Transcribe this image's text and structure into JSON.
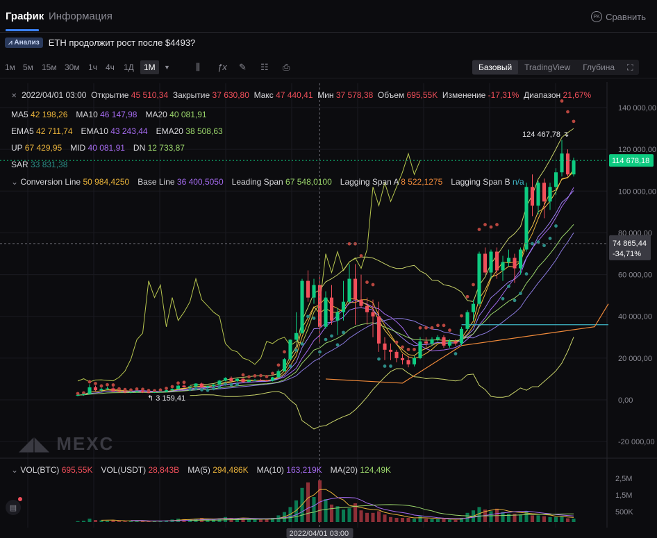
{
  "tabs": {
    "chart": "График",
    "info": "Информация",
    "compare": "Сравнить",
    "compare_icon": "PK"
  },
  "analysis": {
    "badge": "Анализ",
    "text": "ETH продолжит рост после $4493?"
  },
  "toolbar": {
    "timeframes": [
      "1м",
      "5м",
      "15м",
      "30м",
      "1ч",
      "4ч",
      "1Д",
      "1М"
    ],
    "active_timeframe": "1М",
    "views": [
      "Базовый",
      "TradingView",
      "Глубина"
    ],
    "active_view": "Базовый"
  },
  "ohlc": {
    "date": "2022/04/01 03:00",
    "open_label": "Открытие",
    "open": "45 510,34",
    "close_label": "Закрытие",
    "close": "37 630,80",
    "high_label": "Макс",
    "high": "47 440,41",
    "low_label": "Мин",
    "low": "37 578,38",
    "vol_label": "Объем",
    "vol": "695,55K",
    "change_label": "Изменение",
    "change": "-17,31%",
    "range_label": "Диапазон",
    "range": "21,67%"
  },
  "indicators": {
    "ma": [
      {
        "k": "MA5",
        "v": "42 198,26",
        "c": "#e8b23a"
      },
      {
        "k": "MA10",
        "v": "46 147,98",
        "c": "#a56bf0"
      },
      {
        "k": "MA20",
        "v": "40 081,91",
        "c": "#9bd66b"
      }
    ],
    "ema": [
      {
        "k": "EMA5",
        "v": "42 711,74",
        "c": "#e8b23a"
      },
      {
        "k": "EMA10",
        "v": "43 243,44",
        "c": "#a56bf0"
      },
      {
        "k": "EMA20",
        "v": "38 508,63",
        "c": "#9bd66b"
      }
    ],
    "boll": [
      {
        "k": "UP",
        "v": "67 429,95",
        "c": "#e8b23a"
      },
      {
        "k": "MID",
        "v": "40 081,91",
        "c": "#a56bf0"
      },
      {
        "k": "DN",
        "v": "12 733,87",
        "c": "#9bd66b"
      }
    ],
    "sar": [
      {
        "k": "SAR",
        "v": "33 831,38",
        "c": "#2c8c86"
      }
    ],
    "ichimoku": [
      {
        "k": "Conversion Line",
        "v": "50 984,4250",
        "c": "#e8b23a"
      },
      {
        "k": "Base Line",
        "v": "36 400,5050",
        "c": "#a56bf0"
      },
      {
        "k": "Leading Span",
        "v": "67 548,0100",
        "c": "#9bd66b"
      },
      {
        "k": "Lagging Span A",
        "v": "8 522,1275",
        "c": "#f08a3a"
      },
      {
        "k": "Lagging Span B",
        "v": "n/a",
        "c": "#3fb6c7"
      }
    ]
  },
  "watermark": "MEXC",
  "chart_data": {
    "type": "candlestick",
    "y_ticks": [
      "140 000,00",
      "120 000,00",
      "100 000,00",
      "80 000,00",
      "60 000,00",
      "40 000,00",
      "20 000,00",
      "0,00",
      "-20 000,00"
    ],
    "ylim": [
      -20000,
      150000
    ],
    "current_price": "114 678,18",
    "cursor_price": "74 865,44",
    "cursor_change": "-34,71%",
    "high_marker": "124 467,78",
    "low_marker": "3 159,41",
    "x_label": "2022/04/01 03:00",
    "candles": [
      [
        2000,
        2600,
        1700,
        2300
      ],
      [
        2300,
        2900,
        2000,
        2800
      ],
      [
        2800,
        7500,
        2600,
        6000
      ],
      [
        6000,
        6800,
        4200,
        4600
      ],
      [
        4600,
        5800,
        3900,
        5200
      ],
      [
        5200,
        6300,
        4800,
        5500
      ],
      [
        5500,
        6200,
        3800,
        4100
      ],
      [
        4100,
        4600,
        3400,
        3900
      ],
      [
        3900,
        4300,
        3200,
        3500
      ],
      [
        3500,
        4100,
        3160,
        3800
      ],
      [
        3800,
        4500,
        3500,
        4200
      ],
      [
        4200,
        4400,
        3300,
        3600
      ],
      [
        3600,
        3900,
        3200,
        3400
      ],
      [
        3400,
        3800,
        3300,
        3700
      ],
      [
        3700,
        4100,
        3500,
        3900
      ],
      [
        3900,
        4800,
        3700,
        4600
      ],
      [
        4600,
        5500,
        4300,
        5200
      ],
      [
        5200,
        7000,
        5000,
        6800
      ],
      [
        6800,
        7300,
        5800,
        6100
      ],
      [
        6100,
        6700,
        5900,
        6500
      ],
      [
        6500,
        8000,
        6300,
        7800
      ],
      [
        7800,
        8200,
        5700,
        6000
      ],
      [
        6000,
        6800,
        5400,
        6600
      ],
      [
        6600,
        7500,
        6300,
        7300
      ],
      [
        7300,
        9500,
        7100,
        9200
      ],
      [
        9200,
        10800,
        8900,
        10500
      ],
      [
        10500,
        11200,
        8600,
        9000
      ],
      [
        9000,
        10300,
        8600,
        10100
      ],
      [
        10100,
        10400,
        8200,
        8600
      ],
      [
        8600,
        9600,
        8500,
        9500
      ],
      [
        9500,
        10000,
        9100,
        9600
      ],
      [
        9600,
        10100,
        9000,
        9300
      ],
      [
        9300,
        9700,
        8700,
        9100
      ],
      [
        9100,
        11000,
        8800,
        10800
      ],
      [
        10800,
        14500,
        10500,
        13800
      ],
      [
        13800,
        20000,
        13600,
        19500
      ],
      [
        19500,
        29000,
        19000,
        28800
      ],
      [
        28800,
        42000,
        28000,
        32000
      ],
      [
        32000,
        58000,
        31500,
        57000
      ],
      [
        57000,
        62000,
        47000,
        49000
      ],
      [
        49000,
        58000,
        46000,
        55000
      ],
      [
        55000,
        60000,
        27000,
        35000
      ],
      [
        35000,
        52000,
        34000,
        49000
      ],
      [
        49000,
        55000,
        36000,
        38000
      ],
      [
        38000,
        44000,
        31000,
        42000
      ],
      [
        42000,
        57000,
        38000,
        47000
      ],
      [
        47000,
        65000,
        46000,
        58000
      ],
      [
        58000,
        65000,
        36000,
        48000
      ],
      [
        48000,
        60000,
        44000,
        45000
      ],
      [
        45000,
        49000,
        36000,
        42000
      ],
      [
        42000,
        48000,
        30000,
        40000
      ],
      [
        40000,
        47000,
        23000,
        27000
      ],
      [
        27000,
        30000,
        19000,
        24000
      ],
      [
        24000,
        27000,
        19000,
        23000
      ],
      [
        23000,
        24000,
        18000,
        20000
      ],
      [
        20000,
        22000,
        17000,
        19000
      ],
      [
        19000,
        21000,
        15600,
        17000
      ],
      [
        17000,
        21000,
        16000,
        20000
      ],
      [
        20000,
        30000,
        19500,
        28000
      ],
      [
        28000,
        30000,
        25000,
        27000
      ],
      [
        27000,
        30000,
        26000,
        29000
      ],
      [
        29000,
        31000,
        28000,
        30000
      ],
      [
        30000,
        31000,
        25000,
        26000
      ],
      [
        26000,
        29000,
        25000,
        28000
      ],
      [
        28000,
        29000,
        26000,
        27000
      ],
      [
        27000,
        35000,
        26000,
        34000
      ],
      [
        34000,
        43000,
        33000,
        42000
      ],
      [
        42000,
        48000,
        38000,
        46000
      ],
      [
        46000,
        71000,
        45000,
        70000
      ],
      [
        70000,
        73000,
        60000,
        61000
      ],
      [
        61000,
        72000,
        58000,
        71000
      ],
      [
        71000,
        73000,
        58000,
        62000
      ],
      [
        62000,
        69000,
        57000,
        66000
      ],
      [
        66000,
        72000,
        64000,
        68000
      ],
      [
        68000,
        70000,
        56000,
        63000
      ],
      [
        63000,
        73000,
        60000,
        72000
      ],
      [
        72000,
        104000,
        71000,
        102000
      ],
      [
        102000,
        108000,
        88000,
        93000
      ],
      [
        93000,
        105000,
        89000,
        104000
      ],
      [
        104000,
        106000,
        87000,
        95000
      ],
      [
        95000,
        104000,
        91000,
        102000
      ],
      [
        102000,
        111000,
        98000,
        109000
      ],
      [
        109000,
        124500,
        107000,
        118000
      ],
      [
        118000,
        120000,
        107000,
        108000
      ],
      [
        108000,
        116000,
        107000,
        114700
      ]
    ],
    "volume": [
      0.02,
      0.03,
      0.08,
      0.05,
      0.04,
      0.03,
      0.04,
      0.03,
      0.02,
      0.02,
      0.03,
      0.02,
      0.02,
      0.02,
      0.03,
      0.04,
      0.06,
      0.08,
      0.07,
      0.06,
      0.08,
      0.1,
      0.07,
      0.06,
      0.09,
      0.12,
      0.1,
      0.08,
      0.1,
      0.07,
      0.06,
      0.06,
      0.07,
      0.1,
      0.16,
      0.24,
      0.36,
      0.52,
      0.82,
      0.95,
      0.6,
      1.0,
      0.55,
      0.42,
      0.38,
      0.3,
      0.33,
      0.45,
      0.28,
      0.22,
      0.22,
      0.26,
      0.18,
      0.12,
      0.1,
      0.1,
      0.1,
      0.08,
      0.14,
      0.08,
      0.07,
      0.07,
      0.08,
      0.06,
      0.05,
      0.1,
      0.22,
      0.28,
      0.36,
      0.3,
      0.26,
      0.32,
      0.24,
      0.2,
      0.2,
      0.18,
      0.26,
      0.16,
      0.16,
      0.14,
      0.12,
      0.12,
      0.14,
      0.09,
      0.08
    ],
    "vol_ticks": [
      "2,5M",
      "1,5M",
      "500K"
    ],
    "vol_legend": [
      {
        "k": "VOL(BTC)",
        "v": "695,55K",
        "c": "#f04f5a"
      },
      {
        "k": "VOL(USDT)",
        "v": "28,843B",
        "c": "#f04f5a"
      },
      {
        "k": "MA(5)",
        "v": "294,486K",
        "c": "#e8b23a"
      },
      {
        "k": "MA(10)",
        "v": "163,219K",
        "c": "#a56bf0"
      },
      {
        "k": "MA(20)",
        "v": "124,49K",
        "c": "#9bd66b"
      }
    ]
  },
  "colors": {
    "up": "#0ecb81",
    "down": "#f04f5a",
    "bg": "#0c0c0f",
    "grid": "#1a1a20",
    "accent": "#3b82f6"
  }
}
